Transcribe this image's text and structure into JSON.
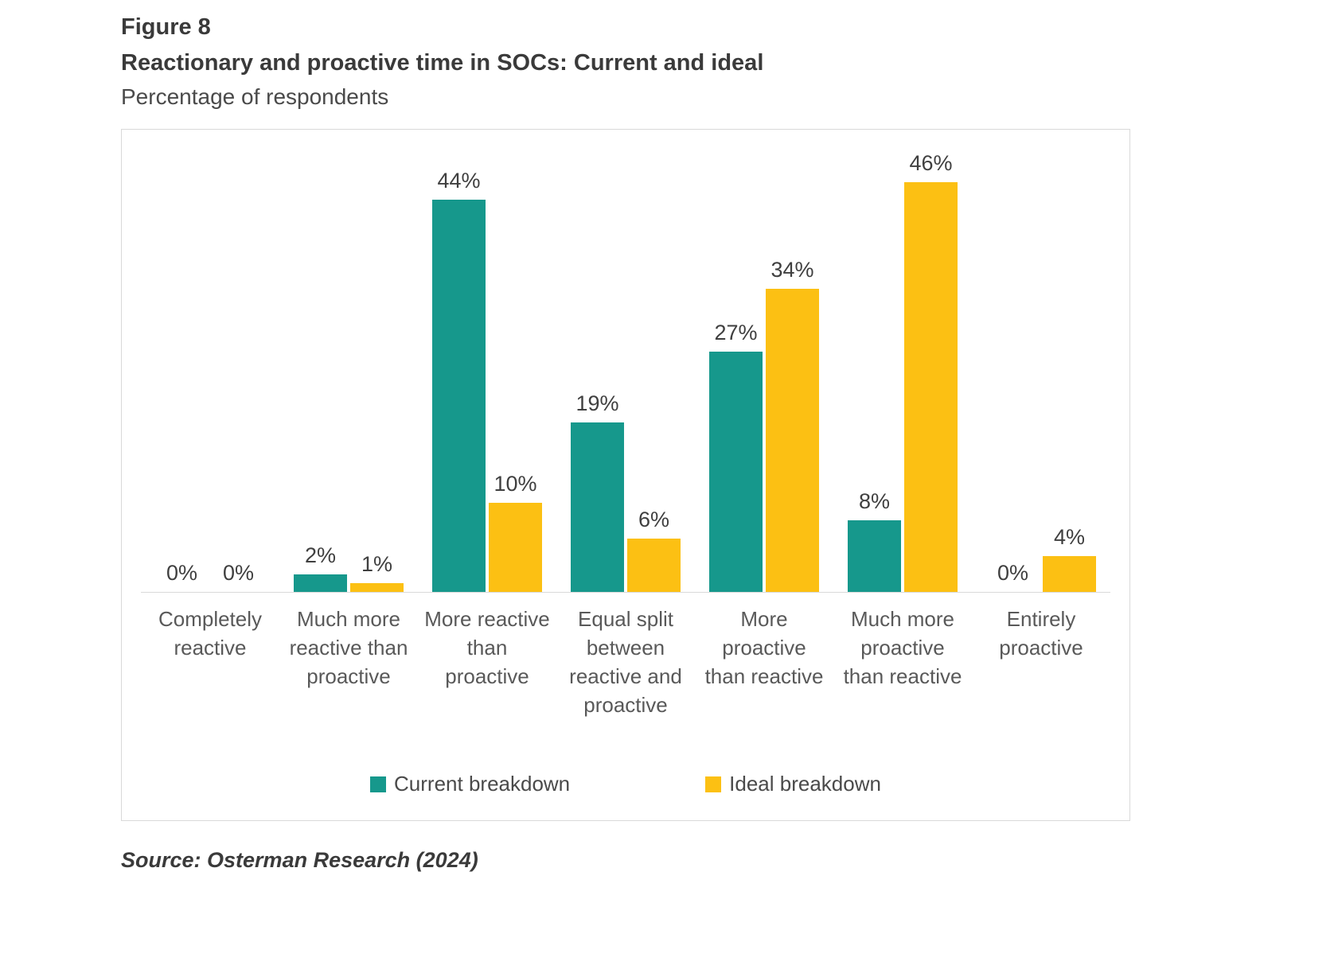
{
  "header": {
    "figure_label": "Figure 8",
    "title": "Reactionary and proactive time in SOCs: Current and ideal",
    "subtitle": "Percentage of respondents"
  },
  "source": "Source: Osterman Research (2024)",
  "colors": {
    "current": "#16988C",
    "ideal": "#FCC013",
    "axis_line": "#d9d9d9"
  },
  "chart_data": {
    "type": "bar",
    "title": "Reactionary and proactive time in SOCs: Current and ideal",
    "subtitle": "Percentage of respondents",
    "unit": "%",
    "categories": [
      "Completely reactive",
      "Much more reactive than proactive",
      "More reactive than proactive",
      "Equal split between reactive and proactive",
      "More proactive than reactive",
      "Much more proactive than reactive",
      "Entirely proactive"
    ],
    "series": [
      {
        "name": "Current breakdown",
        "color": "#16988C",
        "values": [
          0,
          2,
          44,
          19,
          27,
          8,
          0
        ]
      },
      {
        "name": "Ideal breakdown",
        "color": "#FCC013",
        "values": [
          0,
          1,
          10,
          6,
          34,
          46,
          4
        ]
      }
    ],
    "ylim": [
      0,
      50
    ],
    "grid": false,
    "y_axis_shown": false,
    "legend_position": "bottom",
    "value_labels": "shown above bars as percent"
  }
}
